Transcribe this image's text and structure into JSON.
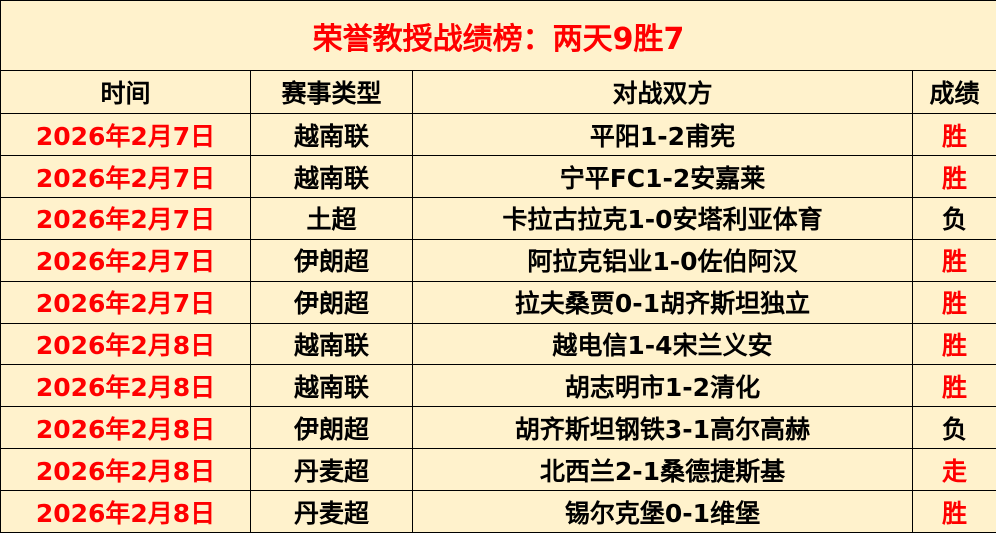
{
  "title": "荣誉教授战绩榜：两天9胜7",
  "headers": [
    "时间",
    "赛事类型",
    "对战双方",
    "成绩"
  ],
  "colors": {
    "background": "#fff2cc",
    "accent": "#ff0000",
    "text": "#000000"
  },
  "rows": [
    {
      "date": "2026年2月7日",
      "league": "越南联",
      "match": "平阳1-2甫宪",
      "result": "胜",
      "highlight": true
    },
    {
      "date": "2026年2月7日",
      "league": "越南联",
      "match": "宁平FC1-2安嘉莱",
      "result": "胜",
      "highlight": true
    },
    {
      "date": "2026年2月7日",
      "league": "土超",
      "match": "卡拉古拉克1-0安塔利亚体育",
      "result": "负",
      "highlight": false
    },
    {
      "date": "2026年2月7日",
      "league": "伊朗超",
      "match": "阿拉克铝业1-0佐伯阿汉",
      "result": "胜",
      "highlight": true
    },
    {
      "date": "2026年2月7日",
      "league": "伊朗超",
      "match": "拉夫桑贾0-1胡齐斯坦独立",
      "result": "胜",
      "highlight": true
    },
    {
      "date": "2026年2月8日",
      "league": "越南联",
      "match": "越电信1-4宋兰义安",
      "result": "胜",
      "highlight": true
    },
    {
      "date": "2026年2月8日",
      "league": "越南联",
      "match": "胡志明市1-2清化",
      "result": "胜",
      "highlight": true
    },
    {
      "date": "2026年2月8日",
      "league": "伊朗超",
      "match": "胡齐斯坦钢铁3-1高尔高赫",
      "result": "负",
      "highlight": false
    },
    {
      "date": "2026年2月8日",
      "league": "丹麦超",
      "match": "北西兰2-1桑德捷斯基",
      "result": "走",
      "highlight": true
    },
    {
      "date": "2026年2月8日",
      "league": "丹麦超",
      "match": "锡尔克堡0-1维堡",
      "result": "胜",
      "highlight": true
    }
  ]
}
